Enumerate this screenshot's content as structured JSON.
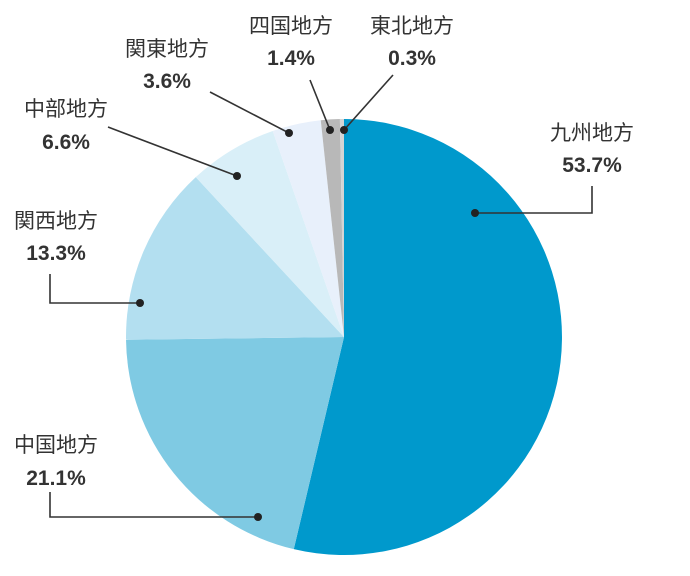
{
  "chart_data": {
    "type": "pie",
    "slices": [
      {
        "label": "九州地方",
        "value": 53.7,
        "value_label": "53.7%",
        "color": "#0099cc"
      },
      {
        "label": "中国地方",
        "value": 21.1,
        "value_label": "21.1%",
        "color": "#7fcae3"
      },
      {
        "label": "関西地方",
        "value": 13.3,
        "value_label": "13.3%",
        "color": "#b3dff0"
      },
      {
        "label": "中部地方",
        "value": 6.6,
        "value_label": "6.6%",
        "color": "#d9eff8"
      },
      {
        "label": "関東地方",
        "value": 3.6,
        "value_label": "3.6%",
        "color": "#e8f0fb"
      },
      {
        "label": "四国地方",
        "value": 1.4,
        "value_label": "1.4%",
        "color": "#b8b8b8"
      },
      {
        "label": "東北地方",
        "value": 0.3,
        "value_label": "0.3%",
        "color": "#d4d4d4"
      }
    ],
    "start": "12 o'clock",
    "direction": "clockwise",
    "legend": "none"
  }
}
